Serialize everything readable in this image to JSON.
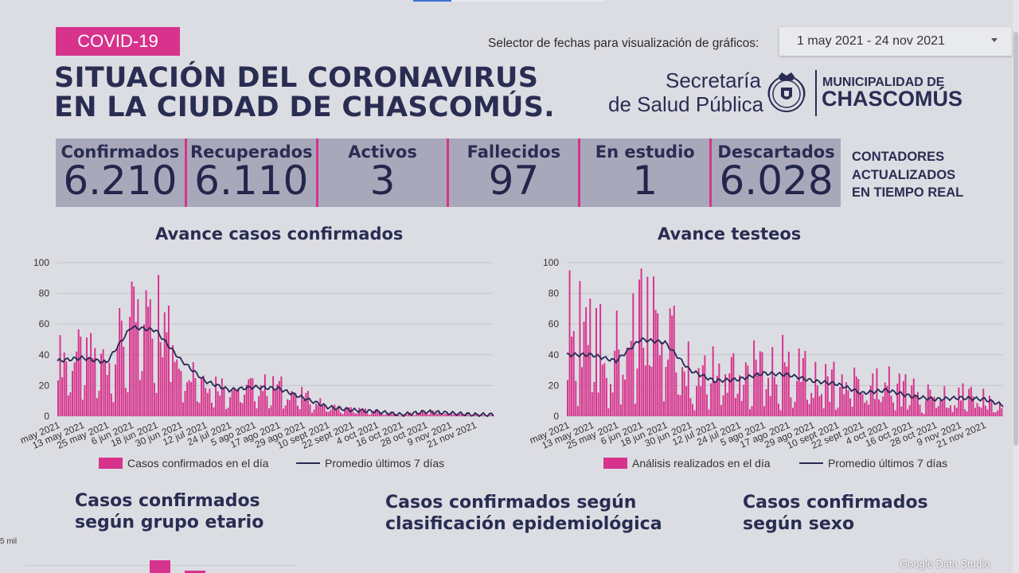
{
  "header": {
    "badge": "COVID-19",
    "title_line1": "SITUACIÓN DEL CORONAVIRUS",
    "title_line2": "EN LA CIUDAD DE CHASCOMÚS.",
    "selector_label": "Selector de fechas para visualización de gráficos:",
    "date_range": "1 may 2021 - 24 nov 2021",
    "secretaria_line1": "Secretaría",
    "secretaria_line2": "de Salud Pública",
    "municipalidad_line1": "MUNICIPALIDAD DE",
    "municipalidad_line2": "CHASCOMÚS"
  },
  "counters": [
    {
      "label": "Confirmados",
      "value": "6.210"
    },
    {
      "label": "Recuperados",
      "value": "6.110"
    },
    {
      "label": "Activos",
      "value": "3"
    },
    {
      "label": "Fallecidos",
      "value": "97"
    },
    {
      "label": "En estudio",
      "value": "1"
    },
    {
      "label": "Descartados",
      "value": "6.028"
    }
  ],
  "realtime_note": [
    "CONTADORES",
    "ACTUALIZADOS",
    "EN TIEMPO REAL"
  ],
  "colors": {
    "accent": "#d7338c",
    "navy": "#2a2d52",
    "counter_bg": "#a9a8bb",
    "background": "#dcdde3"
  },
  "chart_data": [
    {
      "type": "bar",
      "title": "Avance casos confirmados",
      "ylim": [
        0,
        100
      ],
      "yticks": [
        0,
        20,
        40,
        60,
        80,
        100
      ],
      "xticks": [
        "may 2021",
        "13 may 2021",
        "25 may 2021",
        "6 jun 2021",
        "18 jun 2021",
        "30 jun 2021",
        "12 jul 2021",
        "24 jul 2021",
        "5 ago 2021",
        "17 ago 2021",
        "29 ago 2021",
        "10 sept 2021",
        "22 sept 2021",
        "4 oct 2021",
        "16 oct 2021",
        "28 oct 2021",
        "9 nov 2021",
        "21 nov 2021"
      ],
      "bars_per_tick": 12,
      "line_per_tick": [
        36,
        38,
        35,
        58,
        56,
        37,
        23,
        17,
        19,
        18,
        12,
        6,
        4,
        3,
        1,
        3,
        2,
        1
      ],
      "line_end": 1,
      "bar_swing": 0.55,
      "peak_bars": [
        {
          "tick": 4.1,
          "value": 92
        },
        {
          "tick": 3.6,
          "value": 82
        },
        {
          "tick": 4.5,
          "value": 72
        }
      ],
      "series": [
        {
          "name": "Casos confirmados en el día",
          "role": "bars",
          "color": "#d7338c"
        },
        {
          "name": "Promedio últimos 7 días",
          "role": "line",
          "color": "#262a52"
        }
      ]
    },
    {
      "type": "bar",
      "title": "Avance testeos",
      "ylim": [
        0,
        100
      ],
      "yticks": [
        0,
        20,
        40,
        60,
        80,
        100
      ],
      "xticks": [
        "may 2021",
        "13 may 2021",
        "25 may 2021",
        "6 jun 2021",
        "18 jun 2021",
        "30 jun 2021",
        "12 jul 2021",
        "24 jul 2021",
        "5 ago 2021",
        "17 ago 2021",
        "29 ago 2021",
        "10 sept 2021",
        "22 sept 2021",
        "4 oct 2021",
        "16 oct 2021",
        "28 oct 2021",
        "9 nov 2021",
        "21 nov 2021"
      ],
      "bars_per_tick": 12,
      "line_per_tick": [
        40,
        40,
        36,
        50,
        48,
        30,
        23,
        24,
        28,
        27,
        23,
        21,
        15,
        17,
        13,
        11,
        12,
        11
      ],
      "line_end": 6,
      "bar_swing": 1.0,
      "peak_bars": [
        {
          "tick": 0.1,
          "value": 95
        },
        {
          "tick": 0.5,
          "value": 88
        },
        {
          "tick": 3.5,
          "value": 91
        },
        {
          "tick": 1.3,
          "value": 73
        }
      ],
      "series": [
        {
          "name": "Análisis realizados en el día",
          "role": "bars",
          "color": "#d7338c"
        },
        {
          "name": "Promedio últimos 7 días",
          "role": "line",
          "color": "#262a52"
        }
      ]
    }
  ],
  "sections": {
    "age": [
      "Casos confirmados",
      "según grupo etario"
    ],
    "epi": [
      "Casos confirmados según",
      "clasificación epidemiológica"
    ],
    "sex": [
      "Casos confirmados",
      "según sexo"
    ]
  },
  "age_chart_axis_label": "5 mil",
  "footer": {
    "brand": "Google Data Studio"
  }
}
